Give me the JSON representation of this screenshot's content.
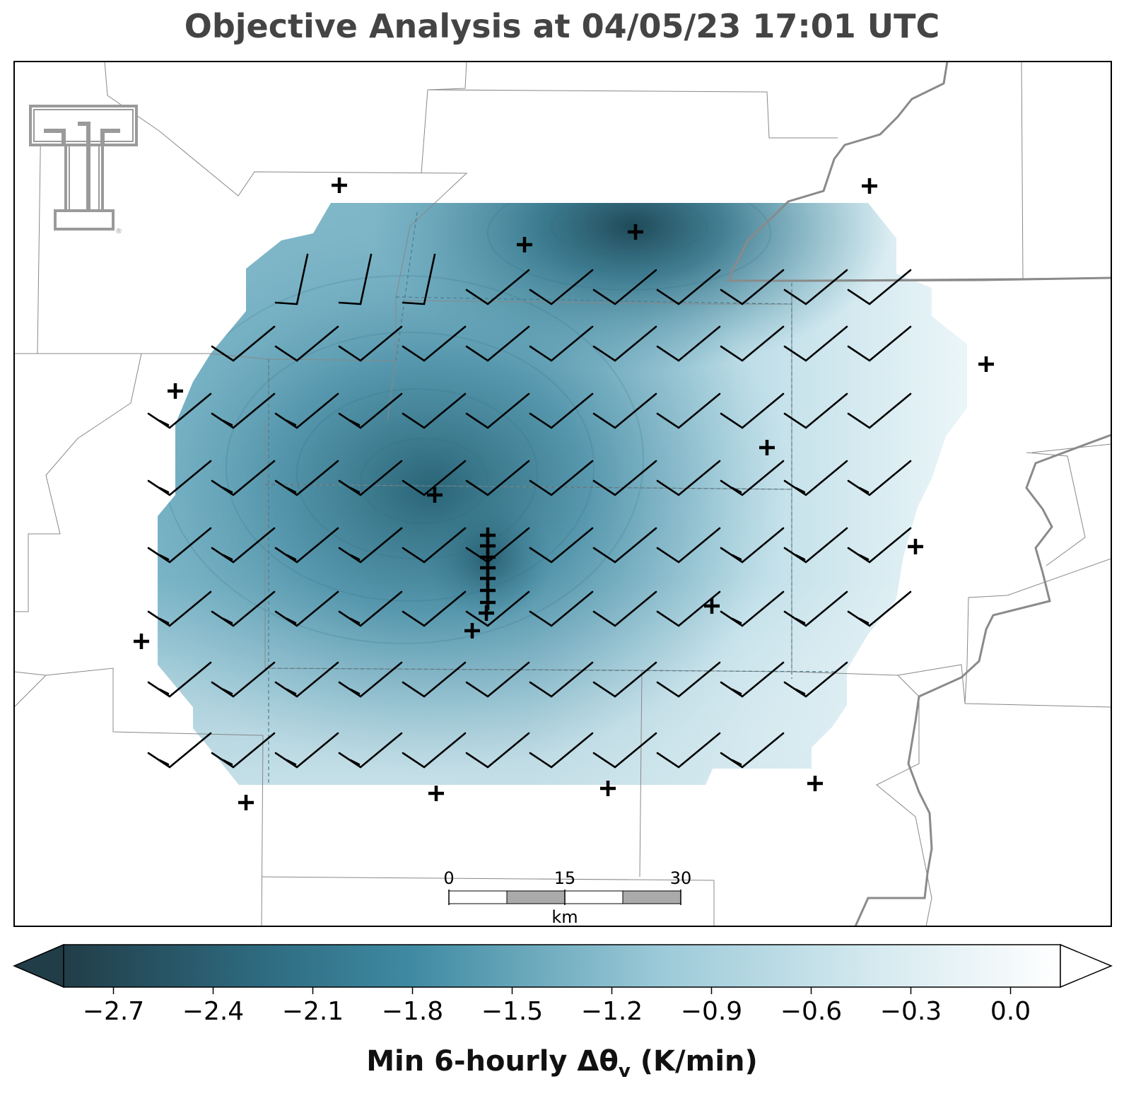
{
  "title": "Objective Analysis at 04/05/23 17:01 UTC",
  "colorbar": {
    "label_main": "Min 6-hourly Δθ",
    "label_sub": "v",
    "label_units": " (K/min)",
    "ticks": [
      "−2.7",
      "−2.4",
      "−2.1",
      "−1.8",
      "−1.5",
      "−1.2",
      "−0.9",
      "−0.6",
      "−0.3",
      "0.0"
    ],
    "range": [
      -2.85,
      0.15
    ],
    "extend": "both",
    "colors": [
      "#213d48",
      "#2e6b80",
      "#4a92a8",
      "#9ccad8",
      "#e3f1f5",
      "#ffffff"
    ]
  },
  "scalebar": {
    "labels": [
      "0",
      "15",
      "30"
    ],
    "unit": "km"
  },
  "logo": {
    "icon": "double-t-logo-icon",
    "color": "#a0a0a0",
    "lettering": "®"
  },
  "field": {
    "minima": [
      {
        "name": "northern minimum",
        "value": -2.8
      },
      {
        "name": "central minimum",
        "value": -2.4
      }
    ],
    "background_value": -0.4
  }
}
